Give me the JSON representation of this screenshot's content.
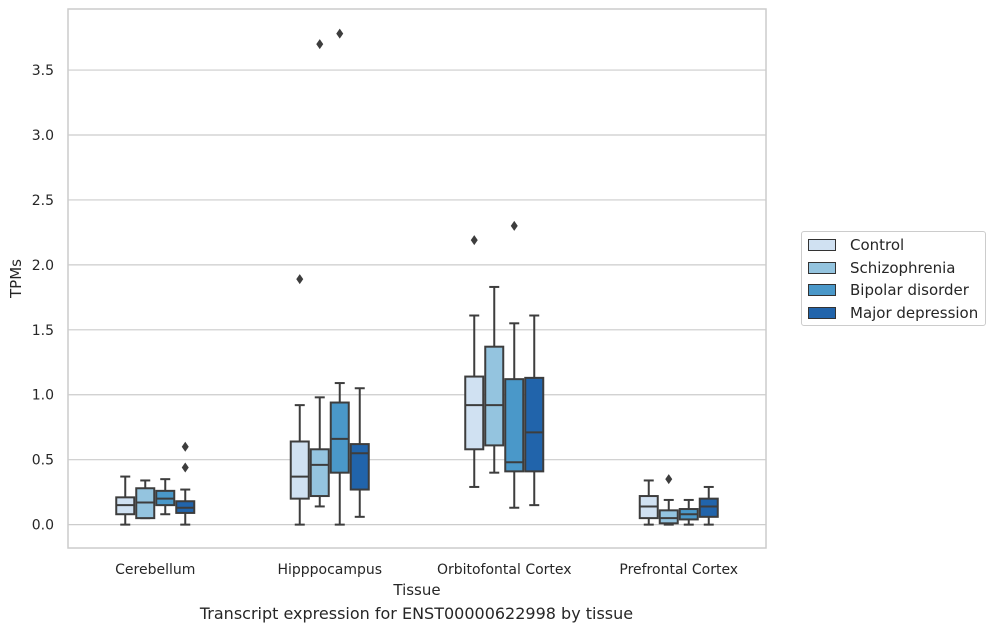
{
  "caption": "Transcript expression for ENST00000622998 by tissue",
  "chart_data": {
    "type": "box",
    "xlabel": "Tissue",
    "ylabel": "TPMs",
    "ylim": [
      -0.18,
      3.97
    ],
    "yticks": [
      "0.0",
      "0.5",
      "1.0",
      "1.5",
      "2.0",
      "2.5",
      "3.0",
      "3.5"
    ],
    "grid": "horizontal",
    "legend_position": "right",
    "categories": [
      "Cerebellum",
      "Hipppocampus",
      "Orbitofontal Cortex",
      "Prefrontal Cortex"
    ],
    "series": [
      {
        "name": "Control",
        "color": "#d0e1f2",
        "boxes": [
          {
            "whislo": 0.0,
            "q1": 0.08,
            "med": 0.15,
            "q3": 0.21,
            "whishi": 0.37,
            "fliers": []
          },
          {
            "whislo": 0.0,
            "q1": 0.2,
            "med": 0.37,
            "q3": 0.64,
            "whishi": 0.92,
            "fliers": [
              1.89
            ]
          },
          {
            "whislo": 0.29,
            "q1": 0.58,
            "med": 0.92,
            "q3": 1.14,
            "whishi": 1.61,
            "fliers": [
              2.19
            ]
          },
          {
            "whislo": 0.0,
            "q1": 0.05,
            "med": 0.14,
            "q3": 0.22,
            "whishi": 0.34,
            "fliers": []
          }
        ]
      },
      {
        "name": "Schizophrenia",
        "color": "#94c4df",
        "boxes": [
          {
            "whislo": 0.05,
            "q1": 0.05,
            "med": 0.17,
            "q3": 0.28,
            "whishi": 0.34,
            "fliers": []
          },
          {
            "whislo": 0.14,
            "q1": 0.22,
            "med": 0.46,
            "q3": 0.58,
            "whishi": 0.98,
            "fliers": [
              3.7
            ]
          },
          {
            "whislo": 0.4,
            "q1": 0.61,
            "med": 0.92,
            "q3": 1.37,
            "whishi": 1.83,
            "fliers": []
          },
          {
            "whislo": 0.0,
            "q1": 0.01,
            "med": 0.05,
            "q3": 0.11,
            "whishi": 0.19,
            "fliers": [
              0.35
            ]
          }
        ]
      },
      {
        "name": "Bipolar disorder",
        "color": "#4a98c9",
        "boxes": [
          {
            "whislo": 0.08,
            "q1": 0.15,
            "med": 0.2,
            "q3": 0.26,
            "whishi": 0.35,
            "fliers": []
          },
          {
            "whislo": 0.0,
            "q1": 0.4,
            "med": 0.66,
            "q3": 0.94,
            "whishi": 1.09,
            "fliers": [
              3.78
            ]
          },
          {
            "whislo": 0.13,
            "q1": 0.41,
            "med": 0.48,
            "q3": 1.12,
            "whishi": 1.55,
            "fliers": [
              2.3
            ]
          },
          {
            "whislo": 0.0,
            "q1": 0.04,
            "med": 0.08,
            "q3": 0.12,
            "whishi": 0.19,
            "fliers": []
          }
        ]
      },
      {
        "name": "Major depression",
        "color": "#2164ab",
        "boxes": [
          {
            "whislo": 0.0,
            "q1": 0.09,
            "med": 0.13,
            "q3": 0.18,
            "whishi": 0.27,
            "fliers": [
              0.44,
              0.6
            ]
          },
          {
            "whislo": 0.06,
            "q1": 0.27,
            "med": 0.55,
            "q3": 0.62,
            "whishi": 1.05,
            "fliers": []
          },
          {
            "whislo": 0.15,
            "q1": 0.41,
            "med": 0.71,
            "q3": 1.13,
            "whishi": 1.61,
            "fliers": []
          },
          {
            "whislo": 0.0,
            "q1": 0.06,
            "med": 0.14,
            "q3": 0.2,
            "whishi": 0.29,
            "fliers": []
          }
        ]
      }
    ]
  }
}
